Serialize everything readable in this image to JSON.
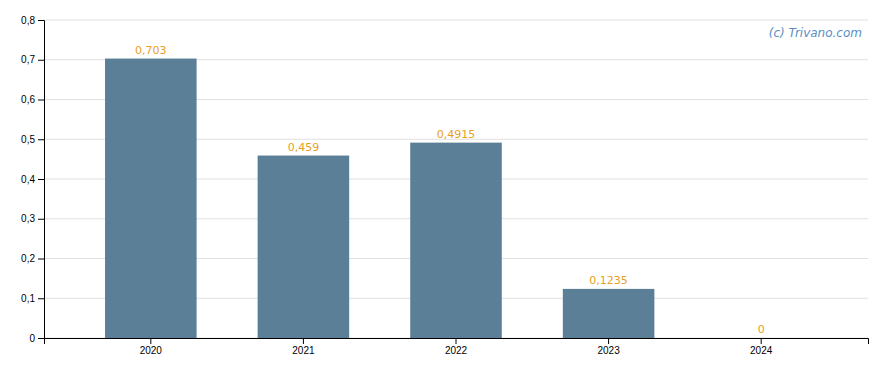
{
  "chart_data": {
    "type": "bar",
    "categories": [
      "2020",
      "2021",
      "2022",
      "2023",
      "2024"
    ],
    "values": [
      0.703,
      0.459,
      0.4915,
      0.1235,
      0
    ],
    "value_labels": [
      "0,703",
      "0,459",
      "0,4915",
      "0,1235",
      "0"
    ],
    "data_labels": true,
    "color": "#5b7f96",
    "ylim": [
      0,
      0.8
    ],
    "yticks": [
      0,
      {
        "value": 0.1,
        "label": "0,1"
      },
      {
        "value": 0.2,
        "label": "0,2"
      },
      {
        "value": 0.3,
        "label": "0,3"
      },
      {
        "value": 0.4,
        "label": "0,4"
      },
      {
        "value": 0.5,
        "label": "0,5"
      },
      {
        "value": 0.6,
        "label": "0,6"
      },
      {
        "value": 0.7,
        "label": "0,7"
      },
      {
        "value": 0.8,
        "label": "0,8"
      }
    ],
    "grid": true,
    "annotations": [
      "(c) Trivano.com"
    ]
  }
}
